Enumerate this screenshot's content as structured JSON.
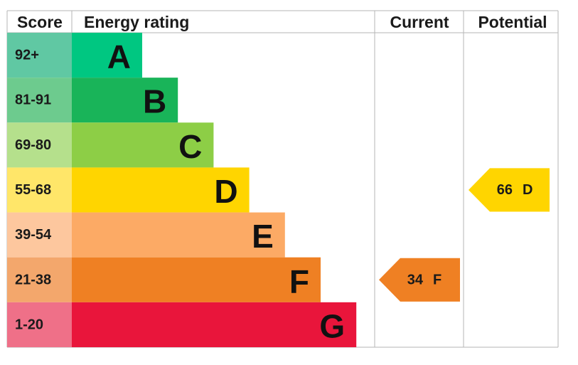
{
  "header": {
    "score": "Score",
    "rating": "Energy rating",
    "current": "Current",
    "potential": "Potential"
  },
  "rows": [
    {
      "score": "92+",
      "letter": "A",
      "color": "#00c781",
      "score_color": "#60c8a3"
    },
    {
      "score": "81-91",
      "letter": "B",
      "color": "#19b459",
      "score_color": "#6dcb8e"
    },
    {
      "score": "69-80",
      "letter": "C",
      "color": "#8dce46",
      "score_color": "#b5e08c"
    },
    {
      "score": "55-68",
      "letter": "D",
      "color": "#ffd500",
      "score_color": "#ffe669"
    },
    {
      "score": "39-54",
      "letter": "E",
      "color": "#fcaa65",
      "score_color": "#fdc79e"
    },
    {
      "score": "21-38",
      "letter": "F",
      "color": "#ef8023",
      "score_color": "#f3a76c"
    },
    {
      "score": "1-20",
      "letter": "G",
      "color": "#e9153b",
      "score_color": "#ef7088"
    }
  ],
  "current": {
    "value": 34,
    "rating": "F"
  },
  "potential": {
    "value": 66,
    "rating": "D"
  }
}
